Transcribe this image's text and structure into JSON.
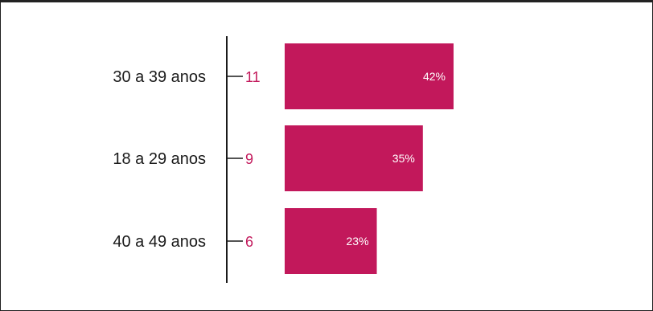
{
  "chart_data": {
    "type": "bar",
    "orientation": "horizontal",
    "categories": [
      "30 a 39 anos",
      "18 a 29 anos",
      "40 a 49 anos"
    ],
    "values": [
      11,
      9,
      6
    ],
    "percent_labels": [
      "42%",
      "35%",
      "23%"
    ],
    "title": "",
    "xlabel": "",
    "ylabel": "",
    "xlim": [
      0,
      11
    ],
    "grid": false,
    "legend": "none",
    "colors": {
      "bar": "#c2185b",
      "count_text": "#c2185b",
      "axis": "#1a1a1a",
      "category_text": "#1a1a1a",
      "percent_text": "#ffffff"
    }
  }
}
